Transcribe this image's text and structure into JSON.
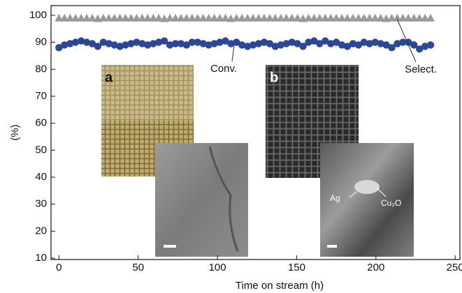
{
  "chart_data": {
    "type": "scatter",
    "x_label": "Time on stream (h)",
    "y_label": "(%)",
    "x": [
      0,
      3.5,
      7,
      10.5,
      14,
      17.5,
      21,
      24.5,
      28,
      31.5,
      35,
      38.5,
      42,
      45.5,
      49,
      52.5,
      56,
      59.5,
      63,
      66.5,
      70,
      73.5,
      77,
      80.5,
      84,
      87.5,
      91,
      94.5,
      98,
      101.5,
      105,
      108.5,
      112,
      115.5,
      119,
      122.5,
      126,
      129.5,
      133,
      136.5,
      140,
      143.5,
      147,
      150.5,
      154,
      157.5,
      161,
      164.5,
      168,
      171.5,
      175,
      178.5,
      182,
      185.5,
      189,
      192.5,
      196,
      199.5,
      203,
      206.5,
      210,
      213.5,
      217,
      220.5,
      224,
      227.5,
      231,
      234.5
    ],
    "series": [
      {
        "name": "Select.",
        "color": "#9a9a9a",
        "marker": "triangle",
        "values": [
          99,
          99,
          99,
          99,
          99,
          99,
          99,
          98.8,
          99,
          99,
          99,
          99,
          99,
          99,
          99,
          99,
          99,
          99,
          99,
          98.8,
          99,
          99,
          99,
          99,
          99,
          99,
          99,
          99,
          99,
          99,
          99,
          98.8,
          99,
          99,
          99,
          99,
          99,
          99,
          99,
          99,
          99,
          99,
          99,
          99,
          98.8,
          99,
          99,
          99,
          99,
          99,
          99,
          99,
          99,
          99,
          99,
          99,
          99,
          99,
          99,
          98.8,
          99,
          99,
          99,
          99,
          99,
          99,
          99,
          99
        ]
      },
      {
        "name": "Conv.",
        "color": "#2b4797",
        "marker": "circle",
        "values": [
          88,
          89,
          89.5,
          90,
          90.5,
          90,
          89.5,
          88.5,
          90,
          89.5,
          89,
          88.5,
          89,
          89.5,
          90,
          89.5,
          89,
          89.5,
          90,
          90.5,
          89,
          89.5,
          89.5,
          89,
          90,
          90,
          89.5,
          89,
          89.5,
          90,
          90.5,
          89.5,
          90,
          89,
          88.5,
          89,
          89.5,
          90,
          89.5,
          88.5,
          89,
          89.5,
          90,
          89.5,
          88.5,
          90,
          90.5,
          89.5,
          90.5,
          89.5,
          90,
          89,
          88.5,
          89.5,
          89,
          90,
          89.5,
          90,
          89.5,
          89,
          88,
          89.5,
          90,
          90,
          89,
          87.5,
          88.5,
          89
        ]
      }
    ],
    "xlim": [
      -5,
      253
    ],
    "xticks": [
      0,
      50,
      100,
      150,
      200,
      250
    ],
    "ylim": [
      9.5,
      103.6
    ],
    "yticks": [
      10,
      20,
      30,
      40,
      50,
      60,
      70,
      80,
      90,
      100
    ],
    "annotations": [
      "a",
      "b",
      "Ag",
      "Cu₂O"
    ]
  }
}
